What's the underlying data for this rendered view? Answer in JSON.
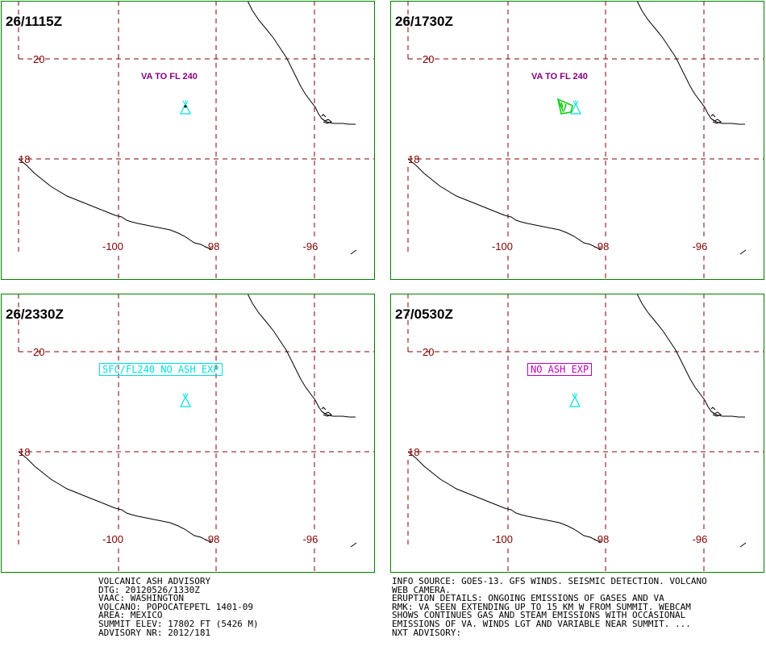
{
  "panels": [
    {
      "time": "26/1115Z",
      "annotation": "VA TO FL 240",
      "annotation_style": "plain",
      "annotation_color": "#800080",
      "ash_polygon": false
    },
    {
      "time": "26/1730Z",
      "annotation": "VA TO FL 240",
      "annotation_style": "plain",
      "annotation_color": "#800080",
      "ash_polygon": true
    },
    {
      "time": "26/2330Z",
      "annotation": "SFC/FL240 NO ASH EXP",
      "annotation_style": "boxed",
      "annotation_color": "#00e0e0",
      "ash_polygon": false
    },
    {
      "time": "27/0530Z",
      "annotation": "NO ASH EXP",
      "annotation_style": "boxed",
      "annotation_color": "#c000c0",
      "ash_polygon": false
    }
  ],
  "grid_labels": {
    "lat_20": "20",
    "lat_18": "18",
    "lon_100": "-100",
    "lon_98": "-98",
    "lon_96": "-96"
  },
  "colors": {
    "frame": "#008000",
    "grid": "#800000",
    "coast": "#000000",
    "volcano": "#00e0e0",
    "ash": "#00d000"
  },
  "icons": {
    "volcano": "volcano-triangle-icon"
  },
  "advisory": {
    "left_lines": [
      "VOLCANIC ASH ADVISORY",
      "DTG: 20120526/1330Z",
      "VAAC: WASHINGTON",
      "VOLCANO: POPOCATEPETL 1401-09",
      "AREA: MEXICO",
      "SUMMIT ELEV: 17802 FT (5426 M)",
      "ADVISORY NR: 2012/181"
    ],
    "right_lines": [
      "INFO SOURCE: GOES-13. GFS WINDS. SEISMIC DETECTION. VOLCANO",
      "WEB CAMERA.",
      "ERUPTION DETAILS: ONGOING EMISSIONS OF GASES AND VA",
      "RMK: VA SEEN EXTENDING UP TO 15 KM W FROM SUMMIT. WEBCAM",
      "SHOWS CONTINUES GAS AND STEAM EMISSIONS WITH OCCASIONAL",
      "EMISSIONS OF VA. WINDS LGT AND VARIABLE NEAR SUMMIT. ...",
      "NXT ADVISORY:"
    ]
  }
}
